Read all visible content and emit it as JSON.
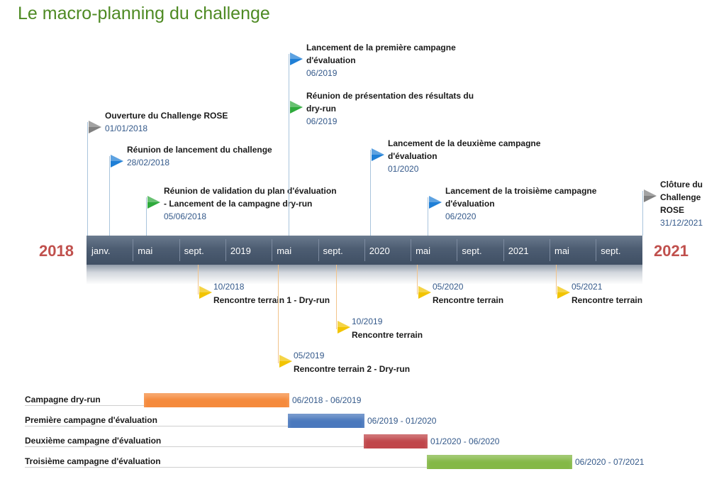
{
  "title": "Le macro-planning du challenge",
  "timeline": {
    "start_year_label": "2018",
    "end_year_label": "2021",
    "months": [
      "janv.",
      "mai",
      "sept.",
      "2019",
      "mai",
      "sept.",
      "2020",
      "mai",
      "sept.",
      "2021",
      "mai",
      "sept."
    ]
  },
  "milestones_above": [
    {
      "label_lines": [
        "Ouverture du Challenge ROSE"
      ],
      "date": "01/01/2018",
      "color": "#808080"
    },
    {
      "label_lines": [
        "Réunion de lancement du challenge"
      ],
      "date": "28/02/2018",
      "color": "#1f7fd6"
    },
    {
      "label_lines": [
        "Réunion de validation  du plan d'évaluation",
        "- Lancement de la campagne dry-run"
      ],
      "date": "05/06/2018",
      "color": "#2eaa3c"
    },
    {
      "label_lines": [
        "Lancement de la première campagne",
        "d'évaluation"
      ],
      "date": "06/2019",
      "color": "#1f7fd6"
    },
    {
      "label_lines": [
        "Réunion de présentation  des résultats  du",
        "dry-run"
      ],
      "date": "06/2019",
      "color": "#2eaa3c"
    },
    {
      "label_lines": [
        "Lancement de la deuxième campagne",
        "d'évaluation"
      ],
      "date": "01/2020",
      "color": "#1f7fd6"
    },
    {
      "label_lines": [
        "Lancement de la troisième campagne",
        "d'évaluation"
      ],
      "date": "06/2020",
      "color": "#1f7fd6"
    },
    {
      "label_lines": [
        "Clôture du",
        "Challenge",
        "ROSE"
      ],
      "date": "31/12/2021",
      "color": "#808080"
    }
  ],
  "milestones_below": [
    {
      "date": "10/2018",
      "label": "Rencontre terrain  1 - Dry-run",
      "color": "#f2c400"
    },
    {
      "date": "05/2019",
      "label": "Rencontre terrain 2 - Dry-run",
      "color": "#f2c400"
    },
    {
      "date": "10/2019",
      "label": "Rencontre terrain",
      "color": "#f2c400"
    },
    {
      "date": "05/2020",
      "label": "Rencontre terrain",
      "color": "#f2c400"
    },
    {
      "date": "05/2021",
      "label": "Rencontre terrain",
      "color": "#f2c400"
    }
  ],
  "campaigns": [
    {
      "label": "Campagne dry-run",
      "dates": "06/2018 - 06/2019",
      "color": "#f58a3c"
    },
    {
      "label": "Première campagne d'évaluation",
      "dates": "06/2019 - 01/2020",
      "color": "#4a78bd"
    },
    {
      "label": "Deuxième campagne d'évaluation",
      "dates": "01/2020 - 06/2020",
      "color": "#c0464a"
    },
    {
      "label": "Troisième campagne d'évaluation",
      "dates": "06/2020 - 07/2021",
      "color": "#84b846"
    }
  ]
}
